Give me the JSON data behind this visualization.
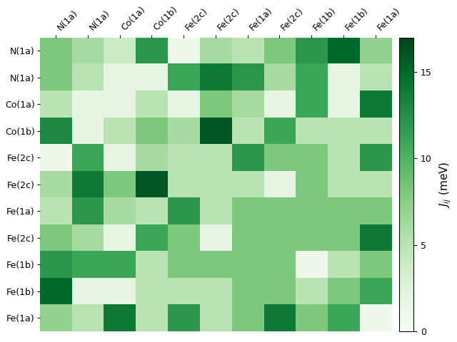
{
  "labels": [
    "N(1a)",
    "N(1a)",
    "Co(1a)",
    "Co(1b)",
    "Fe(2c)",
    "Fe(2c)",
    "Fe(1a)",
    "Fe(2c)",
    "Fe(1b)",
    "Fe(1b)",
    "Fe(1a)"
  ],
  "matrix": [
    [
      8,
      6,
      4,
      12,
      1,
      6,
      5,
      8,
      12,
      15,
      7
    ],
    [
      8,
      5,
      2,
      2,
      11,
      14,
      12,
      6,
      11,
      2,
      5
    ],
    [
      5,
      2,
      2,
      5,
      2,
      8,
      6,
      2,
      11,
      2,
      14
    ],
    [
      13,
      2,
      5,
      8,
      6,
      16,
      5,
      11,
      5,
      5,
      5
    ],
    [
      1,
      11,
      2,
      6,
      5,
      5,
      12,
      8,
      8,
      5,
      12
    ],
    [
      6,
      14,
      8,
      16,
      5,
      5,
      5,
      2,
      8,
      5,
      5
    ],
    [
      5,
      12,
      6,
      5,
      12,
      5,
      8,
      8,
      8,
      8,
      8
    ],
    [
      8,
      6,
      2,
      11,
      8,
      2,
      8,
      8,
      8,
      8,
      14
    ],
    [
      12,
      11,
      11,
      5,
      8,
      8,
      8,
      8,
      1,
      5,
      8
    ],
    [
      15,
      2,
      2,
      5,
      5,
      5,
      8,
      8,
      5,
      8,
      11
    ],
    [
      7,
      5,
      14,
      5,
      12,
      5,
      8,
      14,
      8,
      11,
      1
    ]
  ],
  "vmin": 0,
  "vmax": 17,
  "cbar_label": "$J_{ij}$ (meV)",
  "cbar_ticks": [
    0,
    5,
    10,
    15
  ],
  "figsize": [
    6.4,
    4.8
  ],
  "dpi": 100,
  "tick_fontsize": 9,
  "cbar_fontsize": 11
}
